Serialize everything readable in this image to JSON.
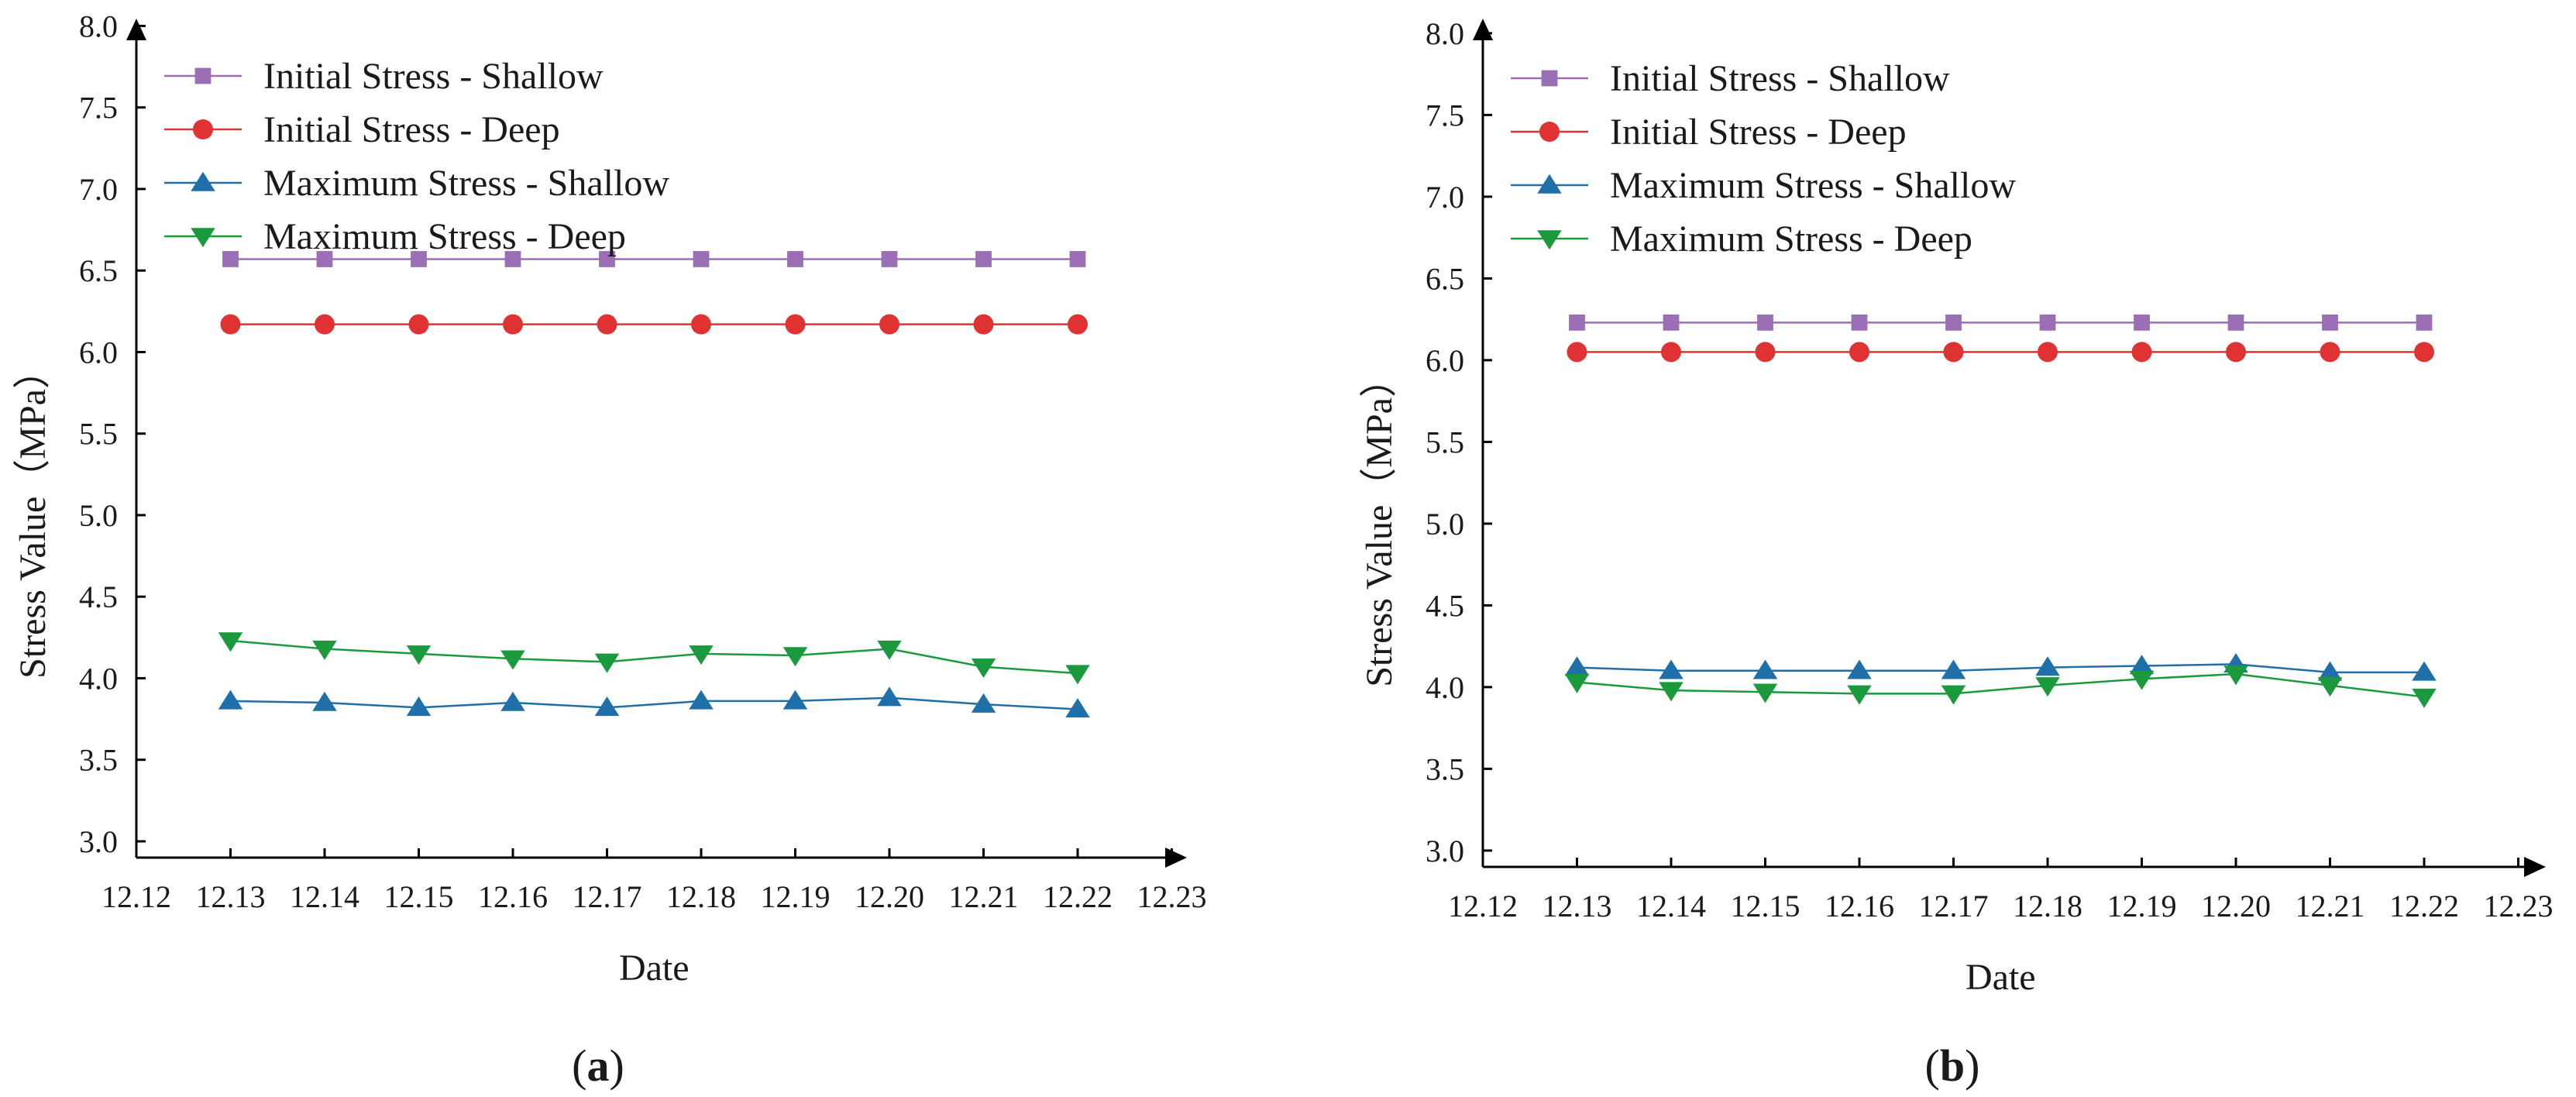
{
  "colors": {
    "initial_shallow": "#9b6fb5",
    "initial_deep": "#e03232",
    "maximum_shallow": "#1f6fa8",
    "maximum_deep": "#1a9a3c",
    "axis": "#000000"
  },
  "chart_data": [
    {
      "type": "line",
      "panel": "a",
      "panel_label": {
        "open": "(",
        "letter": "a",
        "close": ")"
      },
      "xlabel": "Date",
      "ylabel": "Stress Value（MPa）",
      "x_ticks": [
        "12.12",
        "12.13",
        "12.14",
        "12.15",
        "12.16",
        "12.17",
        "12.18",
        "12.19",
        "12.20",
        "12.21",
        "12.22",
        "12.23"
      ],
      "y_ticks": [
        "3.0",
        "3.5",
        "4.0",
        "4.5",
        "5.0",
        "5.5",
        "6.0",
        "6.5",
        "7.0",
        "7.5",
        "8.0"
      ],
      "ylim": [
        2.9,
        8.0
      ],
      "categories": [
        "12.13",
        "12.14",
        "12.15",
        "12.16",
        "12.17",
        "12.18",
        "12.19",
        "12.20",
        "12.21",
        "12.22"
      ],
      "legend_position": "top-left",
      "series": [
        {
          "name": "Initial Stress - Shallow",
          "key": "initial_shallow",
          "marker": "square",
          "values": [
            6.57,
            6.57,
            6.57,
            6.57,
            6.57,
            6.57,
            6.57,
            6.57,
            6.57,
            6.57
          ]
        },
        {
          "name": "Initial Stress - Deep",
          "key": "initial_deep",
          "marker": "circle",
          "values": [
            6.17,
            6.17,
            6.17,
            6.17,
            6.17,
            6.17,
            6.17,
            6.17,
            6.17,
            6.17
          ]
        },
        {
          "name": "Maximum Stress - Shallow",
          "key": "maximum_shallow",
          "marker": "triangle-up",
          "values": [
            3.86,
            3.85,
            3.82,
            3.85,
            3.82,
            3.86,
            3.86,
            3.88,
            3.84,
            3.81
          ]
        },
        {
          "name": "Maximum Stress - Deep",
          "key": "maximum_deep",
          "marker": "triangle-down",
          "values": [
            4.23,
            4.18,
            4.15,
            4.12,
            4.1,
            4.15,
            4.14,
            4.18,
            4.07,
            4.03
          ]
        }
      ]
    },
    {
      "type": "line",
      "panel": "b",
      "panel_label": {
        "open": "(",
        "letter": "b",
        "close": ")"
      },
      "xlabel": "Date",
      "ylabel": "Stress Value（MPa）",
      "x_ticks": [
        "12.12",
        "12.13",
        "12.14",
        "12.15",
        "12.16",
        "12.17",
        "12.18",
        "12.19",
        "12.20",
        "12.21",
        "12.22",
        "12.23"
      ],
      "y_ticks": [
        "3.0",
        "3.5",
        "4.0",
        "4.5",
        "5.0",
        "5.5",
        "6.0",
        "6.5",
        "7.0",
        "7.5",
        "8.0"
      ],
      "ylim": [
        2.9,
        8.0
      ],
      "categories": [
        "12.13",
        "12.14",
        "12.15",
        "12.16",
        "12.17",
        "12.18",
        "12.19",
        "12.20",
        "12.21",
        "12.22"
      ],
      "legend_position": "top-left",
      "series": [
        {
          "name": "Initial Stress - Shallow",
          "key": "initial_shallow",
          "marker": "square",
          "values": [
            6.23,
            6.23,
            6.23,
            6.23,
            6.23,
            6.23,
            6.23,
            6.23,
            6.23,
            6.23
          ]
        },
        {
          "name": "Initial Stress - Deep",
          "key": "initial_deep",
          "marker": "circle",
          "values": [
            6.05,
            6.05,
            6.05,
            6.05,
            6.05,
            6.05,
            6.05,
            6.05,
            6.05,
            6.05
          ]
        },
        {
          "name": "Maximum Stress - Shallow",
          "key": "maximum_shallow",
          "marker": "triangle-up",
          "values": [
            4.12,
            4.1,
            4.1,
            4.1,
            4.1,
            4.12,
            4.13,
            4.14,
            4.09,
            4.09
          ]
        },
        {
          "name": "Maximum Stress - Deep",
          "key": "maximum_deep",
          "marker": "triangle-down",
          "values": [
            4.03,
            3.98,
            3.97,
            3.96,
            3.96,
            4.01,
            4.05,
            4.08,
            4.01,
            3.94
          ]
        }
      ]
    }
  ]
}
